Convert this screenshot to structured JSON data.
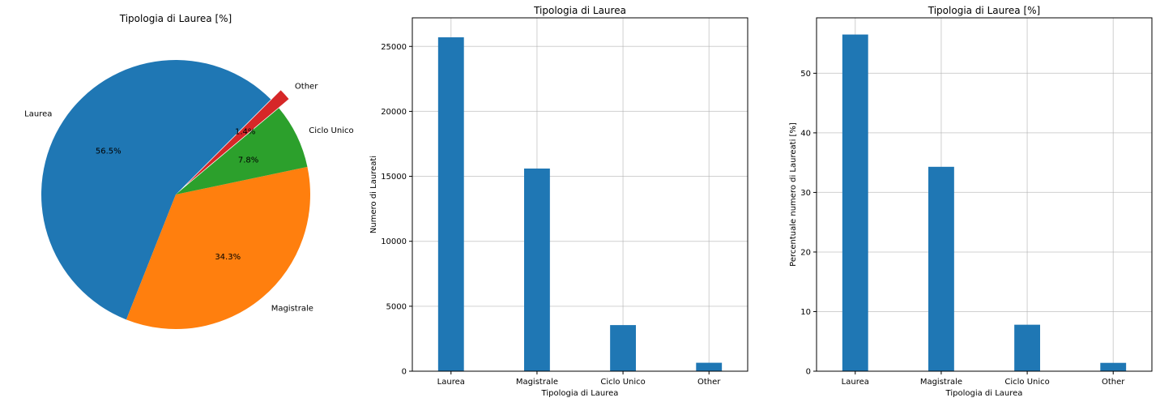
{
  "colors": {
    "blue": "#1f77b4",
    "orange": "#ff7f0e",
    "green": "#2ca02c",
    "red": "#d62728"
  },
  "chart_data": [
    {
      "type": "pie",
      "title": "Tipologia di Laurea [%]",
      "labels": [
        "Laurea",
        "Magistrale",
        "Ciclo Unico",
        "Other"
      ],
      "values": [
        56.5,
        34.3,
        7.8,
        1.4
      ],
      "pct_labels": [
        "56.5%",
        "34.3%",
        "7.8%",
        "1.4%"
      ],
      "colors": [
        "#1f77b4",
        "#ff7f0e",
        "#2ca02c",
        "#d62728"
      ],
      "exploded": [
        "Other"
      ]
    },
    {
      "type": "bar",
      "title": "Tipologia di Laurea",
      "categories": [
        "Laurea",
        "Magistrale",
        "Ciclo Unico",
        "Other"
      ],
      "values": [
        25700,
        15600,
        3550,
        650
      ],
      "xlabel": "Tipologia di Laurea",
      "ylabel": "Numero di Laureati",
      "ylim": [
        0,
        27200
      ],
      "yticks": [
        0,
        5000,
        10000,
        15000,
        20000,
        25000
      ],
      "grid": true
    },
    {
      "type": "bar",
      "title": "Tipologia di Laurea [%]",
      "categories": [
        "Laurea",
        "Magistrale",
        "Ciclo Unico",
        "Other"
      ],
      "values": [
        56.5,
        34.3,
        7.8,
        1.4
      ],
      "xlabel": "Tipologia di Laurea",
      "ylabel": "Percentuale numero di Laureati [%]",
      "ylim": [
        0,
        59.3
      ],
      "yticks": [
        0,
        10,
        20,
        30,
        40,
        50
      ],
      "grid": true
    }
  ]
}
